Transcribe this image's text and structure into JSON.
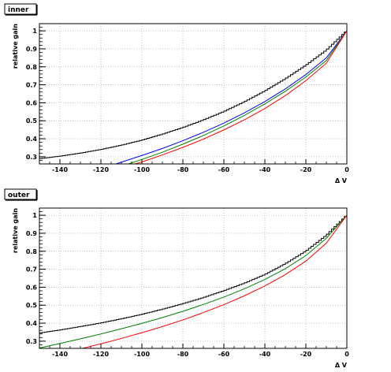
{
  "chart_data": [
    {
      "type": "line",
      "title": "inner",
      "xlabel": "Δ V",
      "ylabel": "relative gain",
      "xlim": [
        -150,
        0
      ],
      "ylim": [
        0.26,
        1.04
      ],
      "xticks": [
        -140,
        -120,
        -100,
        -80,
        -60,
        -40,
        -20,
        0
      ],
      "yticks": [
        0.3,
        0.4,
        0.5,
        0.6,
        0.7,
        0.8,
        0.9,
        1
      ],
      "grid": true,
      "series": [
        {
          "color": "#000000",
          "step": true,
          "x": [
            -150,
            -140,
            -130,
            -120,
            -110,
            -100,
            -90,
            -80,
            -70,
            -60,
            -50,
            -40,
            -30,
            -20,
            -10,
            0
          ],
          "y": [
            0.289,
            0.303,
            0.32,
            0.34,
            0.364,
            0.392,
            0.425,
            0.462,
            0.504,
            0.551,
            0.605,
            0.665,
            0.733,
            0.808,
            0.892,
            1.0
          ]
        },
        {
          "color": "#0000ff",
          "x": [
            -114,
            -110,
            -100,
            -90,
            -80,
            -70,
            -60,
            -50,
            -40,
            -30,
            -20,
            -10,
            0
          ],
          "y": [
            0.255,
            0.27,
            0.307,
            0.346,
            0.389,
            0.436,
            0.487,
            0.544,
            0.607,
            0.677,
            0.757,
            0.85,
            1.0
          ]
        },
        {
          "color": "#008000",
          "x": [
            -108,
            -100,
            -90,
            -80,
            -70,
            -60,
            -50,
            -40,
            -30,
            -20,
            -10,
            0
          ],
          "y": [
            0.255,
            0.285,
            0.325,
            0.37,
            0.418,
            0.471,
            0.53,
            0.594,
            0.664,
            0.743,
            0.835,
            1.0
          ]
        },
        {
          "color": "#ff0000",
          "x": [
            -105,
            -100,
            -90,
            -80,
            -70,
            -60,
            -50,
            -40,
            -30,
            -20,
            -10,
            0
          ],
          "y": [
            0.255,
            0.271,
            0.31,
            0.352,
            0.398,
            0.449,
            0.505,
            0.568,
            0.64,
            0.723,
            0.82,
            1.0
          ]
        }
      ]
    },
    {
      "type": "line",
      "title": "outer",
      "xlabel": "Δ V",
      "ylabel": "relative gain",
      "xlim": [
        -150,
        0
      ],
      "ylim": [
        0.26,
        1.04
      ],
      "xticks": [
        -140,
        -120,
        -100,
        -80,
        -60,
        -40,
        -20,
        0
      ],
      "yticks": [
        0.3,
        0.4,
        0.5,
        0.6,
        0.7,
        0.8,
        0.9,
        1
      ],
      "grid": true,
      "series": [
        {
          "color": "#000000",
          "step": true,
          "x": [
            -150,
            -140,
            -130,
            -120,
            -110,
            -100,
            -90,
            -80,
            -70,
            -60,
            -50,
            -40,
            -30,
            -20,
            -10,
            0
          ],
          "y": [
            0.345,
            0.362,
            0.381,
            0.401,
            0.424,
            0.449,
            0.477,
            0.508,
            0.542,
            0.58,
            0.622,
            0.67,
            0.73,
            0.8,
            0.888,
            1.0
          ]
        },
        {
          "color": "#008000",
          "x": [
            -150,
            -140,
            -130,
            -120,
            -110,
            -100,
            -90,
            -80,
            -70,
            -60,
            -50,
            -40,
            -30,
            -20,
            -10,
            0
          ],
          "y": [
            0.262,
            0.287,
            0.313,
            0.34,
            0.369,
            0.399,
            0.431,
            0.466,
            0.504,
            0.545,
            0.591,
            0.643,
            0.703,
            0.776,
            0.872,
            1.0
          ]
        },
        {
          "color": "#ff0000",
          "x": [
            -130,
            -120,
            -110,
            -100,
            -90,
            -80,
            -70,
            -60,
            -50,
            -40,
            -30,
            -20,
            -10,
            0
          ],
          "y": [
            0.257,
            0.285,
            0.315,
            0.347,
            0.381,
            0.418,
            0.459,
            0.503,
            0.552,
            0.607,
            0.67,
            0.745,
            0.845,
            1.0
          ]
        }
      ]
    }
  ]
}
